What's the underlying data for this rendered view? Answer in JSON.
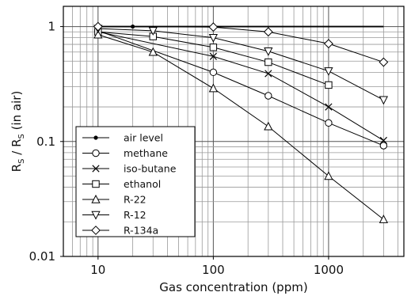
{
  "chart_data": {
    "type": "line",
    "x_scale": "log",
    "y_scale": "log",
    "xlim": [
      5,
      4500
    ],
    "ylim": [
      0.01,
      1.5
    ],
    "grid": true,
    "legend_position": "bottom-left",
    "xlabel": "Gas concentration (ppm)",
    "ylabel": {
      "base": "R",
      "sub1": "S",
      "mid": " / R",
      "sub2": "S",
      "tail": " (in air)"
    },
    "x_tick_labels": [
      "10",
      "100",
      "1000"
    ],
    "y_tick_labels": [
      "0.01",
      "0.1",
      "1"
    ],
    "series": [
      {
        "name": "air level",
        "marker": "dot",
        "x": [
          10,
          20,
          50,
          100,
          3000
        ],
        "y": [
          1,
          1,
          1,
          1,
          1
        ]
      },
      {
        "name": "methane",
        "marker": "circle",
        "x": [
          10,
          100,
          300,
          1000,
          3000
        ],
        "y": [
          0.92,
          0.4,
          0.25,
          0.145,
          0.092
        ]
      },
      {
        "name": "iso-butane",
        "marker": "x",
        "x": [
          10,
          100,
          300,
          1000,
          3000
        ],
        "y": [
          0.9,
          0.55,
          0.39,
          0.2,
          0.102
        ]
      },
      {
        "name": "ethanol",
        "marker": "square",
        "x": [
          10,
          30,
          100,
          300,
          1000
        ],
        "y": [
          0.9,
          0.82,
          0.66,
          0.49,
          0.31
        ]
      },
      {
        "name": "R-22",
        "marker": "triangle-up",
        "x": [
          10,
          30,
          100,
          300,
          1000,
          3000
        ],
        "y": [
          0.85,
          0.6,
          0.29,
          0.135,
          0.05,
          0.021
        ]
      },
      {
        "name": "R-12",
        "marker": "triangle-down",
        "x": [
          10,
          30,
          100,
          300,
          1000,
          3000
        ],
        "y": [
          0.96,
          0.92,
          0.8,
          0.61,
          0.41,
          0.23
        ]
      },
      {
        "name": "R-134a",
        "marker": "diamond",
        "x": [
          10,
          100,
          300,
          1000,
          3000
        ],
        "y": [
          1.0,
          0.99,
          0.9,
          0.71,
          0.49
        ]
      }
    ]
  }
}
